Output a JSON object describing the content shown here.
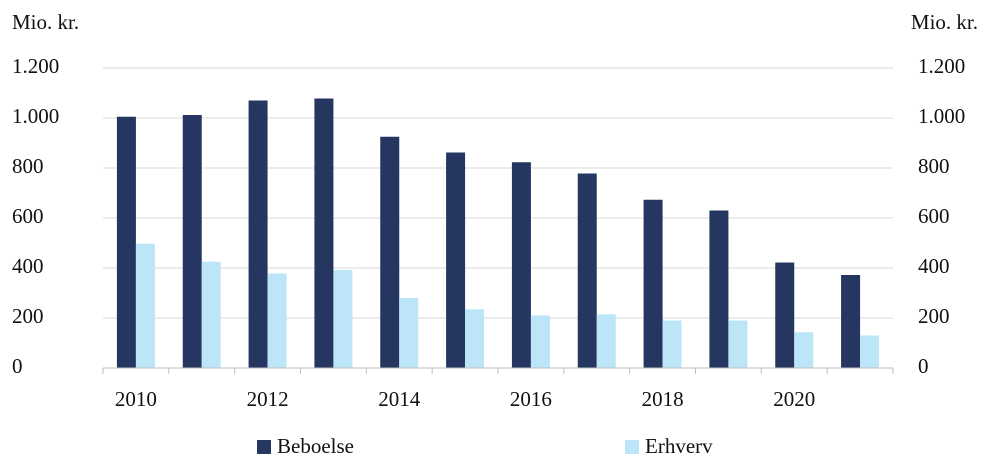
{
  "chart_data": {
    "type": "bar",
    "y_label": "Mio. kr.",
    "y2_label": "Mio. kr.",
    "categories": [
      "2010",
      null,
      "2012",
      null,
      "2014",
      null,
      "2016",
      null,
      "2018",
      null,
      "2020",
      null
    ],
    "series": [
      {
        "name": "Beboelse",
        "color": "#253660",
        "values": [
          1005,
          1012,
          1070,
          1078,
          925,
          862,
          823,
          778,
          673,
          630,
          422,
          372
        ]
      },
      {
        "name": "Erhverv",
        "color": "#bde5f8",
        "values": [
          497,
          425,
          378,
          392,
          280,
          235,
          210,
          215,
          190,
          190,
          143,
          130
        ]
      }
    ],
    "ylim": [
      0,
      1200
    ],
    "yticks": [
      0,
      200,
      400,
      600,
      800,
      {
        "value": 1000,
        "label": "1.000"
      },
      {
        "value": 1200,
        "label": "1.200"
      }
    ],
    "y2lim": [
      0,
      1200
    ],
    "y2ticks": [
      0,
      200,
      400,
      600,
      800,
      {
        "value": 1000,
        "label": "1.000"
      },
      {
        "value": 1200,
        "label": "1.200"
      }
    ],
    "grid": true,
    "legend": "bottom"
  }
}
